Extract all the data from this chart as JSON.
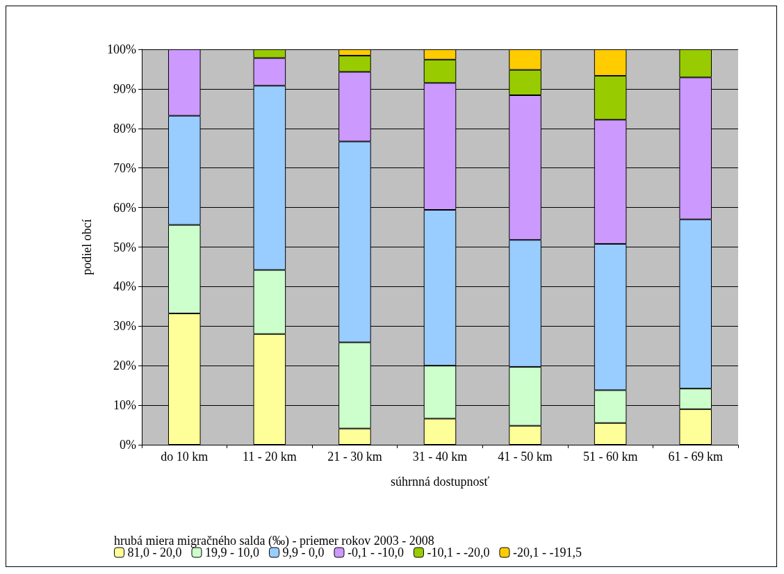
{
  "chart_data": {
    "type": "bar",
    "stacked": true,
    "ylabel": "podiel obcí",
    "xlabel": "súhrnná dostupnosť",
    "legend_title": "hrubá miera migračného salda (‰) - priemer rokov 2003 - 2008",
    "legend": "bottom",
    "grid": "y",
    "categories": [
      "do 10 km",
      "11 - 20 km",
      "21 - 30 km",
      "31 - 40 km",
      "41 - 50 km",
      "51 - 60 km",
      "61 - 69 km"
    ],
    "ylim": [
      0,
      100
    ],
    "yticks": [
      {
        "value": 0,
        "label": "0%"
      },
      {
        "value": 10,
        "label": "10%"
      },
      {
        "value": 20,
        "label": "20%"
      },
      {
        "value": 30,
        "label": "30%"
      },
      {
        "value": 40,
        "label": "40%"
      },
      {
        "value": 50,
        "label": "50%"
      },
      {
        "value": 60,
        "label": "60%"
      },
      {
        "value": 70,
        "label": "70%"
      },
      {
        "value": 80,
        "label": "80%"
      },
      {
        "value": 90,
        "label": "90%"
      },
      {
        "value": 100,
        "label": "100%"
      }
    ],
    "series": [
      {
        "name": "81,0 - 20,0",
        "color": "#ffff99",
        "values": [
          33.2,
          28.0,
          4.1,
          6.6,
          4.8,
          5.5,
          9.0
        ]
      },
      {
        "name": "19,9 - 10,0",
        "color": "#ccffcc",
        "values": [
          22.4,
          16.2,
          21.8,
          13.4,
          14.9,
          8.3,
          5.2
        ]
      },
      {
        "name": "9,9 - 0,0",
        "color": "#99ccff",
        "values": [
          27.6,
          46.6,
          50.8,
          39.4,
          32.1,
          37.0,
          42.8
        ]
      },
      {
        "name": "-0,1 - -10,0",
        "color": "#cc99ff",
        "values": [
          16.8,
          7.0,
          17.6,
          32.1,
          36.6,
          31.4,
          35.9
        ]
      },
      {
        "name": "-10,1 - -20,0",
        "color": "#99cc00",
        "values": [
          null,
          2.2,
          4.1,
          5.9,
          6.4,
          11.1,
          7.1
        ]
      },
      {
        "name": "-20,1 - -191,5",
        "color": "#ffcc00",
        "values": [
          null,
          null,
          1.6,
          2.6,
          5.2,
          6.7,
          null
        ]
      }
    ]
  }
}
